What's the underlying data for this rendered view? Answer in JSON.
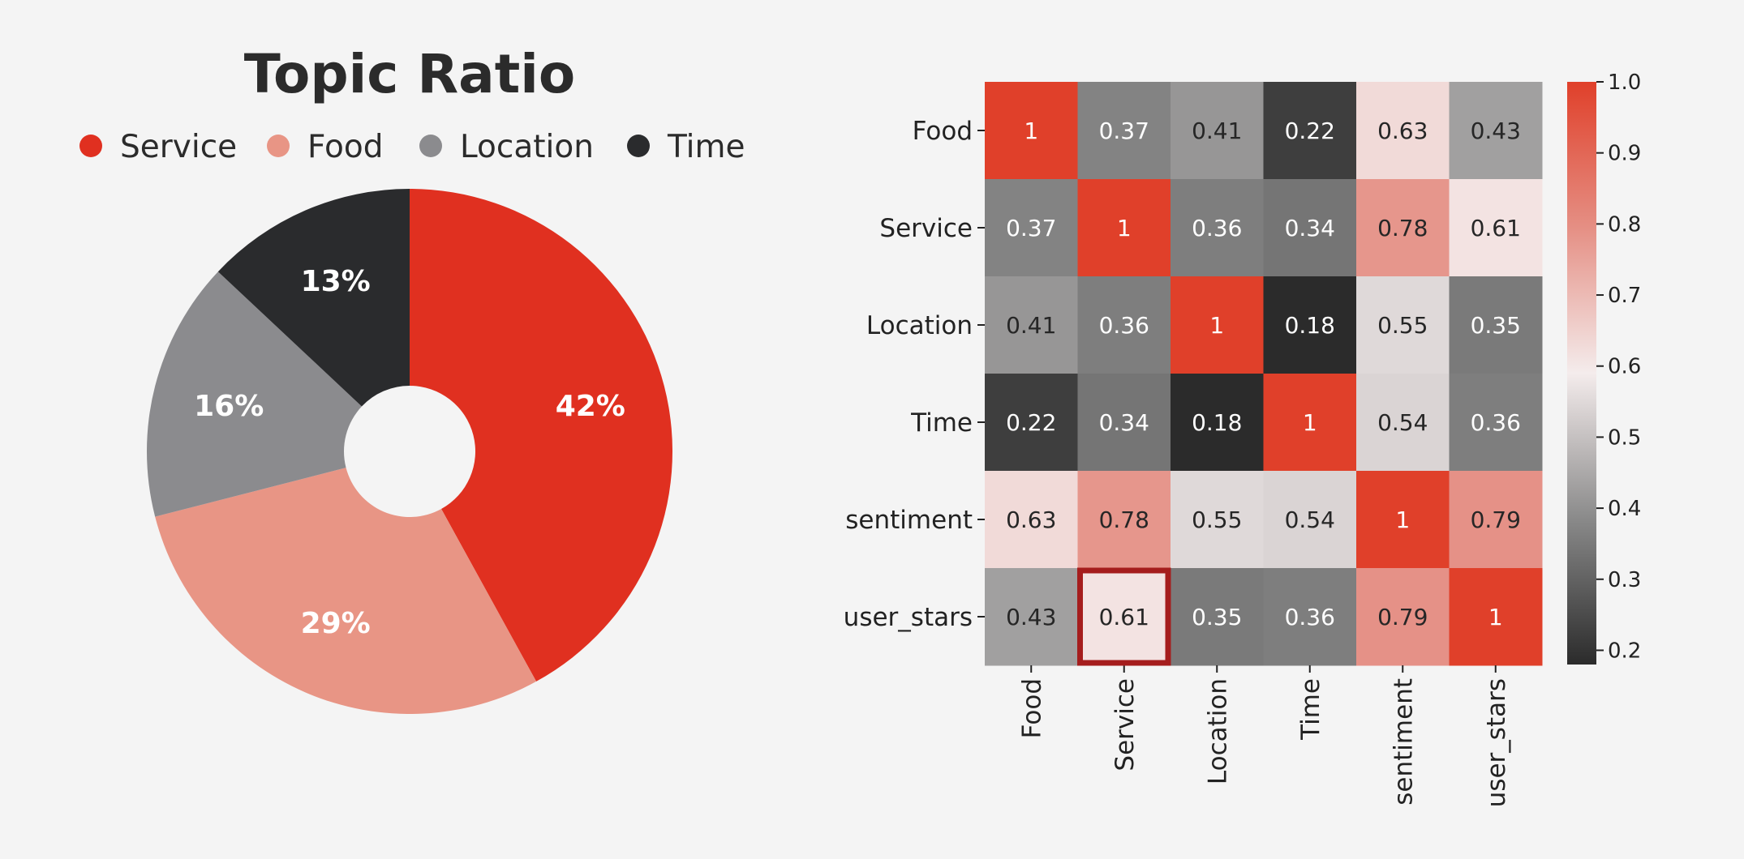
{
  "chart_data": [
    {
      "type": "pie",
      "variant": "donut",
      "title": "Topic Ratio",
      "legend_position": "top",
      "categories": [
        "Service",
        "Food",
        "Location",
        "Time"
      ],
      "values": [
        42,
        29,
        16,
        13
      ],
      "labels": [
        "42%",
        "29%",
        "16%",
        "13%"
      ],
      "colors": [
        "#e03020",
        "#e89585",
        "#8b8b8e",
        "#2a2b2d"
      ]
    },
    {
      "type": "heatmap",
      "title": "",
      "rows": [
        "Food",
        "Service",
        "Location",
        "Time",
        "sentiment",
        "user_stars"
      ],
      "columns": [
        "Food",
        "Service",
        "Location",
        "Time",
        "sentiment",
        "user_stars"
      ],
      "values": [
        [
          1,
          0.37,
          0.41,
          0.22,
          0.63,
          0.43
        ],
        [
          0.37,
          1,
          0.36,
          0.34,
          0.78,
          0.61
        ],
        [
          0.41,
          0.36,
          1,
          0.18,
          0.55,
          0.35
        ],
        [
          0.22,
          0.34,
          0.18,
          1,
          0.54,
          0.36
        ],
        [
          0.63,
          0.78,
          0.55,
          0.54,
          1,
          0.79
        ],
        [
          0.43,
          0.61,
          0.35,
          0.36,
          0.79,
          1
        ]
      ],
      "cell_labels": [
        [
          "1",
          "0.37",
          "0.41",
          "0.22",
          "0.63",
          "0.43"
        ],
        [
          "0.37",
          "1",
          "0.36",
          "0.34",
          "0.78",
          "0.61"
        ],
        [
          "0.41",
          "0.36",
          "1",
          "0.18",
          "0.55",
          "0.35"
        ],
        [
          "0.22",
          "0.34",
          "0.18",
          "1",
          "0.54",
          "0.36"
        ],
        [
          "0.63",
          "0.78",
          "0.55",
          "0.54",
          "1",
          "0.79"
        ],
        [
          "0.43",
          "0.61",
          "0.35",
          "0.36",
          "0.79",
          "1"
        ]
      ],
      "highlighted_cell": {
        "row": "user_stars",
        "column": "Service",
        "color": "#a51d1d"
      },
      "colorbar": {
        "range": [
          0.18,
          1.0
        ],
        "ticks": [
          1.0,
          0.9,
          0.8,
          0.7,
          0.6,
          0.5,
          0.4,
          0.3,
          0.2
        ],
        "tick_labels": [
          "1.0",
          "0.9",
          "0.8",
          "0.7",
          "0.6",
          "0.5",
          "0.4",
          "0.3",
          "0.2"
        ],
        "colors": [
          "#2b2b2b",
          "#8a8a8a",
          "#f4ecec",
          "#e58f84",
          "#e0402a"
        ]
      }
    }
  ]
}
